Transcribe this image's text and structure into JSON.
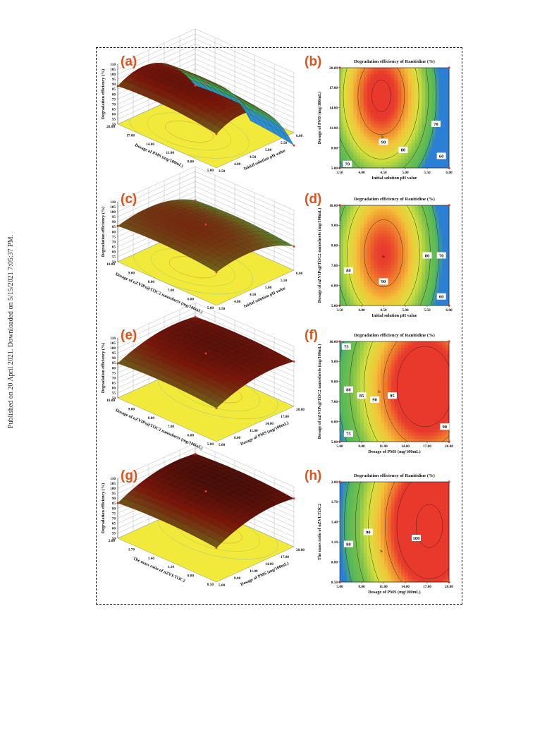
{
  "sidebar_text": "Published on 20 April 2021. Downloaded on 5/15/2021 7:05:37 PM.",
  "colors": {
    "label": "#d9541e",
    "floor": "#f1ea3a",
    "red": "#e8392c",
    "orange": "#f39a2a",
    "yellow": "#f3e63a",
    "green": "#58b84a",
    "blue": "#3f8fd8",
    "frame": "#111111"
  },
  "chart_data": [
    {
      "panel": "(a)",
      "type": "surface3d",
      "zlabel": "Degradation efficiency (%)",
      "zticks": [
        "50",
        "55",
        "60",
        "65",
        "70",
        "75",
        "80",
        "85",
        "90",
        "95",
        "100",
        "105",
        "110"
      ],
      "x_axis": {
        "label": "Dosage of PMS (mg/100mL)",
        "ticks": [
          "20.00",
          "17.00",
          "14.00",
          "11.00",
          "8.00",
          "5.00"
        ]
      },
      "y_axis": {
        "label": "Initial solution pH value",
        "ticks": [
          "3.50",
          "4.00",
          "4.50",
          "5.00",
          "5.50",
          "6.00"
        ]
      }
    },
    {
      "panel": "(b)",
      "type": "contour",
      "title": "Degradation efficiency of Ranitidine (%)",
      "xlabel": "Initial solution pH value",
      "xticks": [
        "3.50",
        "4.00",
        "4.50",
        "5.00",
        "5.50",
        "6.00"
      ],
      "ylabel": "Dosage of PMS (mg/100mL)",
      "yticks": [
        "5.00",
        "8.00",
        "11.00",
        "14.00",
        "17.00",
        "20.00"
      ],
      "contour_labels": [
        "70",
        "70",
        "80",
        "90",
        "60"
      ],
      "centre_label": "5e"
    },
    {
      "panel": "(c)",
      "type": "surface3d",
      "zlabel": "Degradation efficiency (%)",
      "zticks": [
        "50",
        "55",
        "60",
        "65",
        "70",
        "75",
        "80",
        "85",
        "90",
        "95",
        "100",
        "105",
        "110"
      ],
      "x_axis": {
        "label": "Dosage of nZVIPs@Ti3C2 nanosheets (mg/100mL)",
        "ticks": [
          "10.00",
          "9.00",
          "8.00",
          "7.00",
          "6.00",
          "5.00"
        ]
      },
      "y_axis": {
        "label": "Initial solution pH value",
        "ticks": [
          "3.50",
          "4.00",
          "4.50",
          "5.00",
          "5.50",
          "6.00"
        ]
      }
    },
    {
      "panel": "(d)",
      "type": "contour",
      "title": "Degradation efficiency of Ranitidine (%)",
      "xlabel": "Initial solution pH value",
      "xticks": [
        "3.50",
        "4.00",
        "4.50",
        "5.00",
        "5.50",
        "6.00"
      ],
      "ylabel": "Dosage of nZVIPs@Ti3C2 nanosheets (mg/100mL)",
      "yticks": [
        "5.00",
        "6.00",
        "7.00",
        "8.00",
        "9.00",
        "10.00"
      ],
      "contour_labels": [
        "80",
        "90",
        "80",
        "70",
        "60"
      ],
      "centre_label": "5e"
    },
    {
      "panel": "(e)",
      "type": "surface3d",
      "zlabel": "Degradation efficiency (%)",
      "zticks": [
        "50",
        "55",
        "60",
        "65",
        "70",
        "75",
        "80",
        "85",
        "90",
        "95",
        "100",
        "105",
        "110"
      ],
      "x_axis": {
        "label": "Dosage of nZVIPs@Ti3C2 nanosheets (mg/100mL)",
        "ticks": [
          "10.00",
          "9.00",
          "8.00",
          "7.00",
          "6.00",
          "5.00"
        ]
      },
      "y_axis": {
        "label": "Dosage of PMS (mg/100mL)",
        "ticks": [
          "5.00",
          "8.00",
          "11.00",
          "14.00",
          "17.00",
          "20.00"
        ]
      }
    },
    {
      "panel": "(f)",
      "type": "contour",
      "title": "Degradation efficiency of Ranitidine (%)",
      "xlabel": "Dosage of PMS (mg/100mL)",
      "xticks": [
        "5.00",
        "8.00",
        "11.00",
        "14.00",
        "17.00",
        "20.00"
      ],
      "ylabel": "Dosage of nZVIPs@Ti3C2 nanosheets (mg/100mL)",
      "yticks": [
        "5.00",
        "6.00",
        "7.00",
        "8.00",
        "9.00",
        "10.00"
      ],
      "contour_labels": [
        "75",
        "80",
        "85",
        "90",
        "95",
        "75",
        "90"
      ],
      "centre_label": "5e"
    },
    {
      "panel": "(g)",
      "type": "surface3d",
      "zlabel": "Degradation efficiency (%)",
      "zticks": [
        "50",
        "55",
        "60",
        "65",
        "70",
        "75",
        "80",
        "85",
        "90",
        "95",
        "100",
        "105",
        "110"
      ],
      "x_axis": {
        "label": "The mass ratio of nZVI:Ti3C2",
        "ticks": [
          "2.00",
          "1.70",
          "1.40",
          "1.10",
          "0.80",
          "0.50"
        ]
      },
      "y_axis": {
        "label": "Dosage of PMS (mg/100mL)",
        "ticks": [
          "5.00",
          "8.00",
          "11.00",
          "14.00",
          "17.00",
          "20.00"
        ]
      }
    },
    {
      "panel": "(h)",
      "type": "contour",
      "title": "Degradation efficiency of Ranitidine (%)",
      "xlabel": "Dosage of PMS (mg/100mL)",
      "xticks": [
        "5.00",
        "8.00",
        "11.00",
        "14.00",
        "17.00",
        "20.00"
      ],
      "ylabel": "The mass ratio of nZVI:Ti3C2",
      "yticks": [
        "0.50",
        "0.80",
        "1.10",
        "1.40",
        "1.70",
        "2.00"
      ],
      "contour_labels": [
        "80",
        "90",
        "100"
      ],
      "centre_label": "5e"
    }
  ]
}
